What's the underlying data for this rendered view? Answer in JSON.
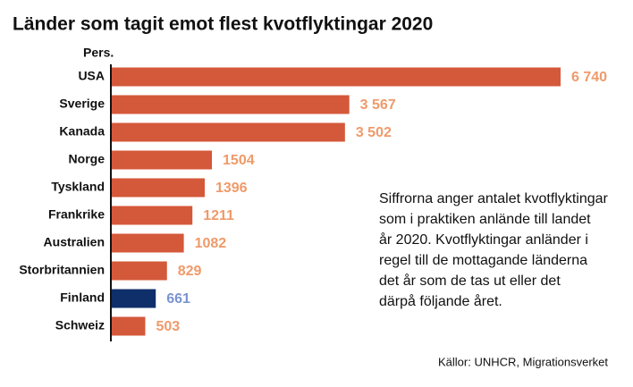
{
  "chart_data": {
    "type": "barh",
    "title": "Länder som tagit emot flest kvotflyktingar 2020",
    "unit_label": "Pers.",
    "categories": [
      "USA",
      "Sverige",
      "Kanada",
      "Norge",
      "Tyskland",
      "Frankrike",
      "Australien",
      "Storbritannien",
      "Finland",
      "Schweiz"
    ],
    "values": [
      6740,
      3567,
      3502,
      1504,
      1396,
      1211,
      1082,
      829,
      661,
      503
    ],
    "value_labels": [
      "6 740",
      "3 567",
      "3 502",
      "1504",
      "1396",
      "1211",
      "1082",
      "829",
      "661",
      "503"
    ],
    "colors": [
      "#d4583a",
      "#d4583a",
      "#d4583a",
      "#d4583a",
      "#d4583a",
      "#d4583a",
      "#d4583a",
      "#d4583a",
      "#0f2f6a",
      "#d4583a"
    ],
    "label_colors": [
      "#ef9a6a",
      "#ef9a6a",
      "#ef9a6a",
      "#ef9a6a",
      "#ef9a6a",
      "#ef9a6a",
      "#ef9a6a",
      "#ef9a6a",
      "#7b93d1",
      "#ef9a6a"
    ],
    "note": [
      "Siffrorna anger antalet kvotflyktingar",
      "som i praktiken anlände till landet",
      "år 2020. Kvotflyktingar anländer i",
      "regel till de mottagande länderna",
      "det år som de tas ut eller det",
      "därpå följande året."
    ],
    "source": "Källor: UNHCR, Migrationsverket"
  }
}
